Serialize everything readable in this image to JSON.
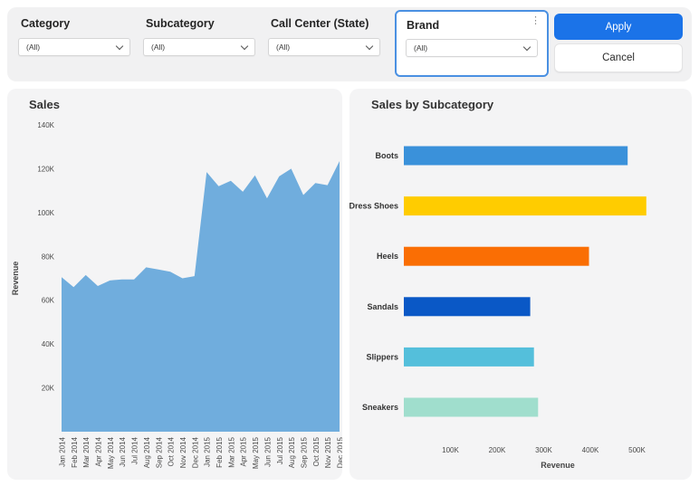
{
  "filter_bar": {
    "filters": [
      {
        "label": "Category",
        "value": "(All)"
      },
      {
        "label": "Subcategory",
        "value": "(All)"
      },
      {
        "label": "Call Center (State)",
        "value": "(All)"
      },
      {
        "label": "Brand",
        "value": "(All)",
        "selected": true
      }
    ],
    "apply_label": "Apply",
    "cancel_label": "Cancel",
    "kebab_icon": "⋮"
  },
  "colors": {
    "accent_blue": "#1B73E8",
    "brand_box_border": "#4A90E2",
    "card_background": "#F4F4F5",
    "area_fill": "#70ADDD"
  },
  "chart_data": [
    {
      "type": "area",
      "title": "Sales",
      "ylabel": "Revenue",
      "x": [
        "Jan 2014",
        "Feb 2014",
        "Mar 2014",
        "Apr 2014",
        "May 2014",
        "Jun 2014",
        "Jul 2014",
        "Aug 2014",
        "Sep 2014",
        "Oct 2014",
        "Nov 2014",
        "Dec 2014",
        "Jan 2015",
        "Feb 2015",
        "Mar 2015",
        "Apr 2015",
        "May 2015",
        "Jun 2015",
        "Jul 2015",
        "Aug 2015",
        "Sep 2015",
        "Oct 2015",
        "Nov 2015",
        "Dec 2015"
      ],
      "values": [
        70500,
        66000,
        71500,
        66500,
        69000,
        69500,
        69500,
        75000,
        74000,
        73000,
        70000,
        71000,
        118500,
        112000,
        114500,
        109500,
        117000,
        106500,
        116500,
        120000,
        108000,
        113500,
        112500,
        123500
      ],
      "ylim": [
        0,
        140000
      ],
      "yticks": [
        20000,
        40000,
        60000,
        80000,
        100000,
        120000,
        140000
      ],
      "fill": "#70ADDD",
      "grid": false,
      "legend": "none"
    },
    {
      "type": "bar",
      "orientation": "horizontal",
      "title": "Sales by Subcategory",
      "xlabel": "Revenue",
      "categories": [
        "Boots",
        "Dress Shoes",
        "Heels",
        "Sandals",
        "Slippers",
        "Sneakers"
      ],
      "values": [
        480000,
        520000,
        397000,
        271000,
        279000,
        288000
      ],
      "colors": [
        "#3A91DA",
        "#FFCC00",
        "#FA6E04",
        "#0A58C6",
        "#54BFDB",
        "#A0DECD"
      ],
      "xlim": [
        0,
        550000
      ],
      "xticks": [
        100000,
        200000,
        300000,
        400000,
        500000
      ],
      "grid": false,
      "legend": "none"
    }
  ]
}
